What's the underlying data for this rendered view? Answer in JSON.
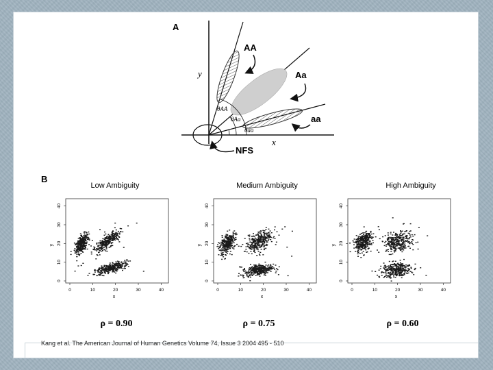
{
  "caption": "Kang et al. The American Journal of Human Genetics Volume 74, Issue 3 2004 495 - 510",
  "panel_a": {
    "label": "A",
    "axis_y": "y",
    "axis_x": "x",
    "labels": {
      "AA": "AA",
      "Aa": "Aa",
      "aa": "aa",
      "NFS": "NFS"
    },
    "angles": {
      "AA": "θAA",
      "Aa": "θAa",
      "aa": "θaa"
    }
  },
  "panel_b": {
    "label": "B"
  },
  "chart_data": [
    {
      "type": "scatter",
      "title": "Low Ambiguity",
      "xlabel": "x",
      "ylabel": "y",
      "xlim": [
        0,
        45
      ],
      "ylim": [
        0,
        45
      ],
      "xticks": [
        0,
        10,
        20,
        30,
        40
      ],
      "yticks": [
        0,
        10,
        20,
        30,
        40
      ],
      "clusters": [
        {
          "cx": 7,
          "cy": 21,
          "angle_deg": 70,
          "spread": [
            2,
            5
          ]
        },
        {
          "cx": 18,
          "cy": 22,
          "angle_deg": 45,
          "spread": [
            2.5,
            7
          ]
        },
        {
          "cx": 20,
          "cy": 8,
          "angle_deg": 20,
          "spread": [
            2,
            7
          ]
        }
      ],
      "rho": "ρ = 0.90"
    },
    {
      "type": "scatter",
      "title": "Medium Ambiguity",
      "xlabel": "x",
      "ylabel": "y",
      "xlim": [
        0,
        45
      ],
      "ylim": [
        0,
        45
      ],
      "xticks": [
        0,
        10,
        20,
        30,
        40
      ],
      "yticks": [
        0,
        10,
        20,
        30,
        40
      ],
      "clusters": [
        {
          "cx": 6,
          "cy": 21,
          "angle_deg": 70,
          "spread": [
            2.5,
            5
          ]
        },
        {
          "cx": 20,
          "cy": 22,
          "angle_deg": 40,
          "spread": [
            3.5,
            6.5
          ]
        },
        {
          "cx": 20,
          "cy": 7,
          "angle_deg": 15,
          "spread": [
            2.5,
            6.5
          ]
        }
      ],
      "rho": "ρ = 0.75"
    },
    {
      "type": "scatter",
      "title": "High Ambiguity",
      "xlabel": "x",
      "ylabel": "y",
      "xlim": [
        0,
        45
      ],
      "ylim": [
        0,
        45
      ],
      "xticks": [
        0,
        10,
        20,
        30,
        40
      ],
      "yticks": [
        0,
        10,
        20,
        30,
        40
      ],
      "clusters": [
        {
          "cx": 7,
          "cy": 22,
          "angle_deg": 70,
          "spread": [
            3,
            5
          ]
        },
        {
          "cx": 22,
          "cy": 22,
          "angle_deg": 35,
          "spread": [
            4.5,
            6
          ]
        },
        {
          "cx": 21,
          "cy": 7,
          "angle_deg": 10,
          "spread": [
            3.5,
            6
          ]
        }
      ],
      "rho": "ρ = 0.60"
    }
  ]
}
